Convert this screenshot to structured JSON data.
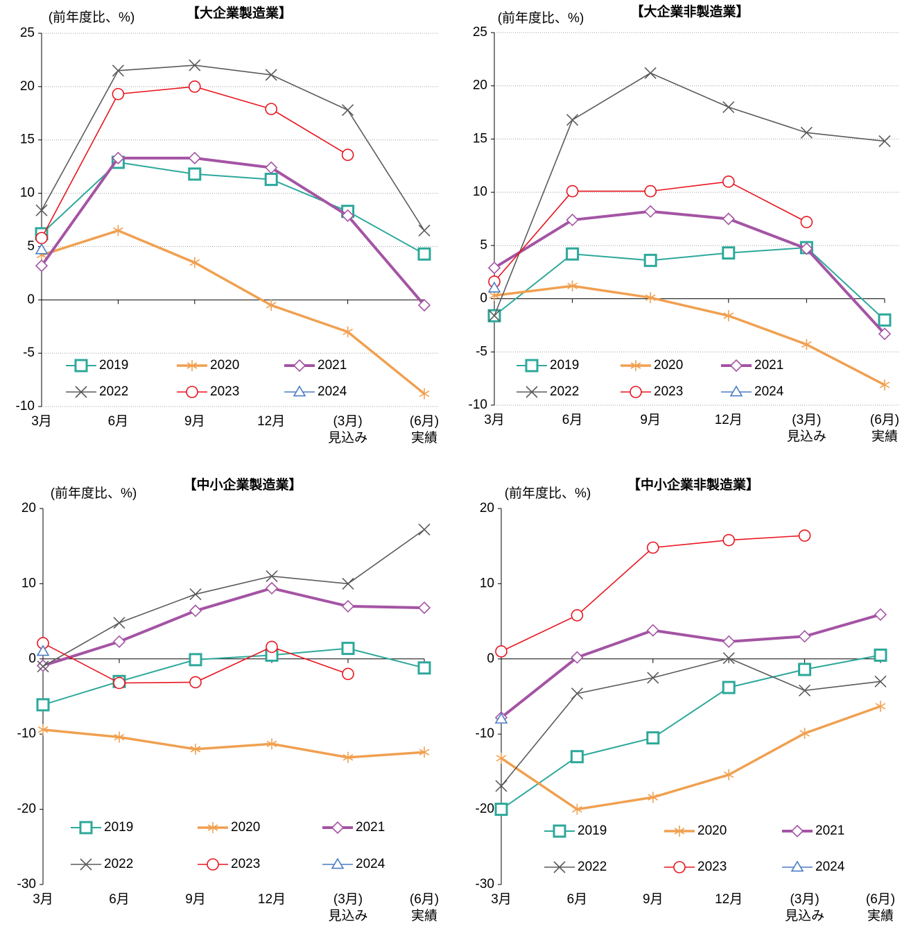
{
  "chart_data": [
    {
      "type": "line",
      "title": "【大企業製造業】",
      "y_label": "(前年度比、%)",
      "categories": [
        "3月",
        "6月",
        "9月",
        "12月",
        "(3月)\n見込み",
        "(6月)\n実績"
      ],
      "ylim": [
        -10,
        25
      ],
      "yticks": [
        -10,
        -5,
        0,
        5,
        10,
        15,
        20,
        25
      ],
      "grid": true,
      "series": [
        {
          "name": "2019",
          "color": "#2ca89a",
          "values": [
            6.2,
            12.9,
            11.8,
            11.3,
            8.3,
            4.3
          ]
        },
        {
          "name": "2020",
          "color": "#f0a050",
          "values": [
            4.2,
            6.5,
            3.5,
            -0.5,
            -3.0,
            -8.8
          ]
        },
        {
          "name": "2021",
          "color": "#a454a4",
          "values": [
            3.2,
            13.3,
            13.3,
            12.4,
            7.9,
            -0.5
          ]
        },
        {
          "name": "2022",
          "color": "#5a5a5a",
          "values": [
            8.4,
            21.5,
            22.0,
            21.1,
            17.8,
            6.5
          ]
        },
        {
          "name": "2023",
          "color": "#e8141e",
          "values": [
            5.8,
            19.3,
            20.0,
            17.9,
            13.6,
            null
          ]
        },
        {
          "name": "2024",
          "color": "#4a7cc4",
          "values": [
            4.7,
            null,
            null,
            null,
            null,
            null
          ]
        }
      ]
    },
    {
      "type": "line",
      "title": "【大企業非製造業】",
      "y_label": "(前年度比、%)",
      "categories": [
        "3月",
        "6月",
        "9月",
        "12月",
        "(3月)\n見込み",
        "(6月)\n実績"
      ],
      "ylim": [
        -10,
        25
      ],
      "yticks": [
        -10,
        -5,
        0,
        5,
        10,
        15,
        20,
        25
      ],
      "grid": true,
      "series": [
        {
          "name": "2019",
          "color": "#2ca89a",
          "values": [
            -1.6,
            4.2,
            3.6,
            4.3,
            4.8,
            -2.0
          ]
        },
        {
          "name": "2020",
          "color": "#f0a050",
          "values": [
            0.3,
            1.2,
            0.1,
            -1.6,
            -4.3,
            -8.1
          ]
        },
        {
          "name": "2021",
          "color": "#a454a4",
          "values": [
            2.9,
            7.4,
            8.2,
            7.5,
            4.7,
            -3.3
          ]
        },
        {
          "name": "2022",
          "color": "#5a5a5a",
          "values": [
            -1.6,
            16.8,
            21.2,
            18.0,
            15.6,
            14.8
          ]
        },
        {
          "name": "2023",
          "color": "#e8141e",
          "values": [
            1.6,
            10.1,
            10.1,
            11.0,
            7.2,
            null
          ]
        },
        {
          "name": "2024",
          "color": "#4a7cc4",
          "values": [
            1.0,
            null,
            null,
            null,
            null,
            null
          ]
        }
      ]
    },
    {
      "type": "line",
      "title": "【中小企業製造業】",
      "y_label": "(前年度比、%)",
      "categories": [
        "3月",
        "6月",
        "9月",
        "12月",
        "(3月)\n見込み",
        "(6月)\n実績"
      ],
      "ylim": [
        -30,
        20
      ],
      "yticks": [
        -30,
        -20,
        -10,
        0,
        10,
        20
      ],
      "grid": false,
      "series": [
        {
          "name": "2019",
          "color": "#2ca89a",
          "values": [
            -6.1,
            -3.0,
            -0.1,
            0.5,
            1.4,
            -1.2
          ]
        },
        {
          "name": "2020",
          "color": "#f0a050",
          "values": [
            -9.4,
            -10.4,
            -12.0,
            -11.3,
            -13.1,
            -12.4
          ]
        },
        {
          "name": "2021",
          "color": "#a454a4",
          "values": [
            -0.9,
            2.3,
            6.4,
            9.4,
            7.0,
            6.8
          ]
        },
        {
          "name": "2022",
          "color": "#5a5a5a",
          "values": [
            -1.0,
            4.8,
            8.6,
            11.0,
            10.0,
            17.2
          ]
        },
        {
          "name": "2023",
          "color": "#e8141e",
          "values": [
            2.1,
            -3.2,
            -3.1,
            1.6,
            -2.0,
            null
          ]
        },
        {
          "name": "2024",
          "color": "#4a7cc4",
          "values": [
            1.0,
            null,
            null,
            null,
            null,
            null
          ]
        }
      ]
    },
    {
      "type": "line",
      "title": "【中小企業非製造業】",
      "y_label": "(前年度比、%)",
      "categories": [
        "3月",
        "6月",
        "9月",
        "12月",
        "(3月)\n見込み",
        "(6月)\n実績"
      ],
      "ylim": [
        -30,
        20
      ],
      "yticks": [
        -30,
        -20,
        -10,
        0,
        10,
        20
      ],
      "grid": false,
      "series": [
        {
          "name": "2019",
          "color": "#2ca89a",
          "values": [
            -20.0,
            -13.0,
            -10.5,
            -3.8,
            -1.4,
            0.5
          ]
        },
        {
          "name": "2020",
          "color": "#f0a050",
          "values": [
            -13.2,
            -20.0,
            -18.4,
            -15.4,
            -9.9,
            -6.3
          ]
        },
        {
          "name": "2021",
          "color": "#a454a4",
          "values": [
            -7.8,
            0.2,
            3.8,
            2.3,
            3.0,
            5.9
          ]
        },
        {
          "name": "2022",
          "color": "#5a5a5a",
          "values": [
            -16.9,
            -4.6,
            -2.5,
            0.1,
            -4.2,
            -3.0
          ]
        },
        {
          "name": "2023",
          "color": "#e8141e",
          "values": [
            1.0,
            5.8,
            14.8,
            15.8,
            16.4,
            null
          ]
        },
        {
          "name": "2024",
          "color": "#4a7cc4",
          "values": [
            -8.0,
            null,
            null,
            null,
            null,
            null
          ]
        }
      ]
    }
  ]
}
